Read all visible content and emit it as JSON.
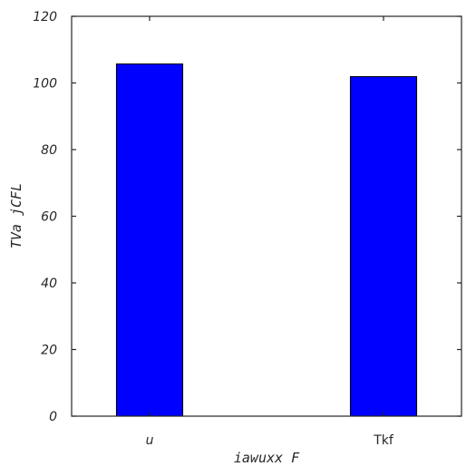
{
  "chart_data": {
    "type": "bar",
    "categories": [
      "u",
      "Tkf"
    ],
    "values": [
      105.7,
      101.9
    ],
    "title": "",
    "xlabel": "iawuxx  F",
    "ylabel": "TVa  jCFL",
    "ylim": [
      0,
      120
    ],
    "yticks": [
      0,
      20,
      40,
      60,
      80,
      100,
      120
    ],
    "bar_color": "#0000ff",
    "grid": false
  }
}
